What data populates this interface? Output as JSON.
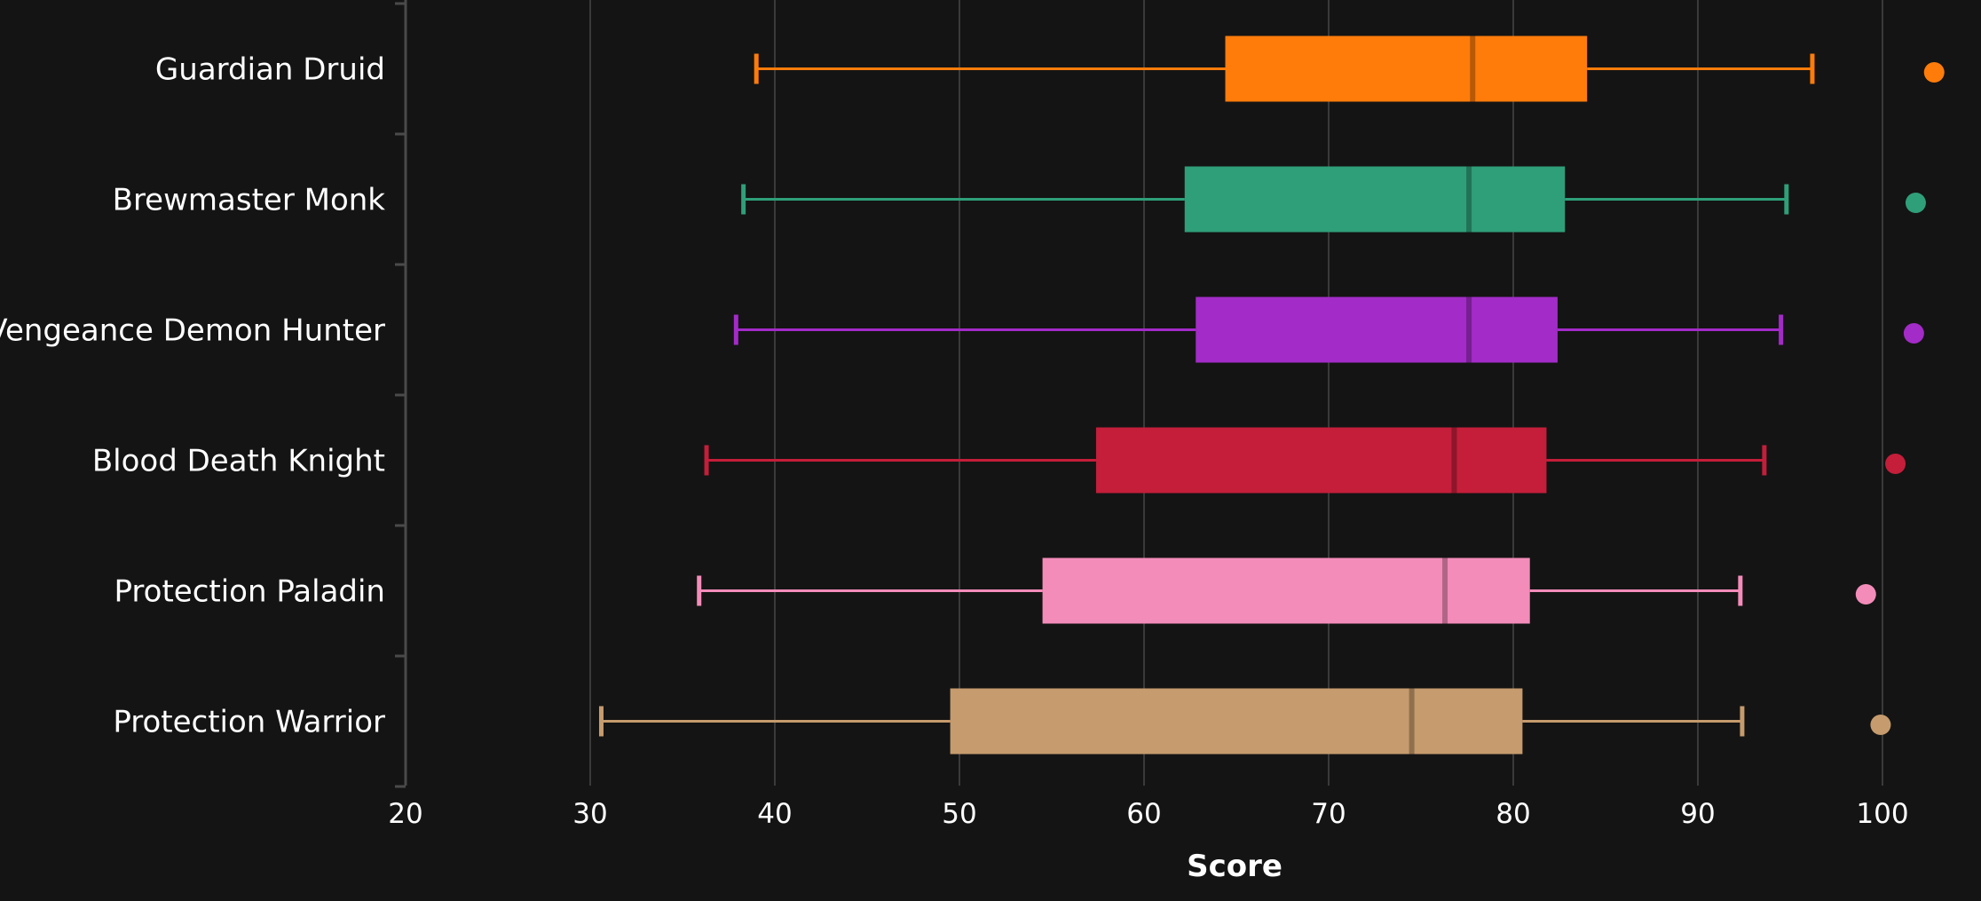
{
  "chart_data": {
    "type": "box",
    "orientation": "horizontal",
    "title": "",
    "xlabel": "Score",
    "ylabel": "",
    "xlim": [
      20,
      103
    ],
    "x_ticks": [
      20,
      30,
      40,
      50,
      60,
      70,
      80,
      90,
      100
    ],
    "grid": "vertical",
    "legend": "none",
    "categories": [
      "Guardian Druid",
      "Brewmaster Monk",
      "Vengeance Demon Hunter",
      "Blood Death Knight",
      "Protection Paladin",
      "Protection Warrior"
    ],
    "series": [
      {
        "category": "Guardian Druid",
        "color": "#ff7c0a",
        "min": 39.0,
        "q1": 64.4,
        "median": 77.8,
        "q3": 84.0,
        "max": 96.2,
        "outliers": [
          102.8
        ]
      },
      {
        "category": "Brewmaster Monk",
        "color": "#2f9f79",
        "min": 38.3,
        "q1": 62.2,
        "median": 77.6,
        "q3": 82.8,
        "max": 94.8,
        "outliers": [
          101.8
        ]
      },
      {
        "category": "Vengeance Demon Hunter",
        "color": "#a32bc8",
        "min": 37.9,
        "q1": 62.8,
        "median": 77.6,
        "q3": 82.4,
        "max": 94.5,
        "outliers": [
          101.7
        ]
      },
      {
        "category": "Blood Death Knight",
        "color": "#c41e3a",
        "min": 36.3,
        "q1": 57.4,
        "median": 76.8,
        "q3": 81.8,
        "max": 93.6,
        "outliers": [
          100.7
        ]
      },
      {
        "category": "Protection Paladin",
        "color": "#f48cba",
        "min": 35.9,
        "q1": 54.5,
        "median": 76.3,
        "q3": 80.9,
        "max": 92.3,
        "outliers": [
          99.1
        ]
      },
      {
        "category": "Protection Warrior",
        "color": "#c69b6d",
        "min": 30.6,
        "q1": 49.5,
        "median": 74.5,
        "q3": 80.5,
        "max": 92.4,
        "outliers": [
          99.9
        ]
      }
    ]
  }
}
